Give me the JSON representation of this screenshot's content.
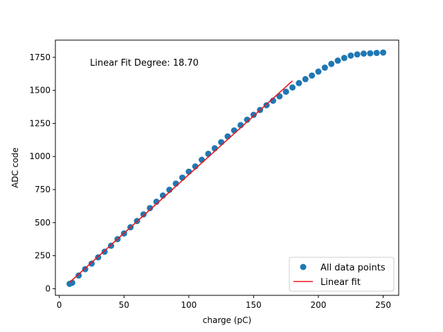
{
  "chart_data": {
    "type": "scatter",
    "title": "",
    "xlabel": "charge (pC)",
    "ylabel": "ADC code",
    "xlim": [
      -3,
      262
    ],
    "ylim": [
      -50,
      1880
    ],
    "xticks": [
      0,
      50,
      100,
      150,
      200,
      250
    ],
    "yticks": [
      0,
      250,
      500,
      750,
      1000,
      1250,
      1500,
      1750
    ],
    "grid": false,
    "legend_position": "lower-right",
    "annotation": "Linear Fit Degree: 18.70",
    "series": [
      {
        "name": "All data points",
        "kind": "scatter",
        "color": "#1f77b4",
        "x": [
          8,
          10,
          15,
          20,
          25,
          30,
          35,
          40,
          45,
          50,
          55,
          60,
          65,
          70,
          75,
          80,
          85,
          90,
          95,
          100,
          105,
          110,
          115,
          120,
          125,
          130,
          135,
          140,
          145,
          150,
          155,
          160,
          165,
          170,
          175,
          180,
          185,
          190,
          195,
          200,
          205,
          210,
          215,
          220,
          225,
          230,
          235,
          240,
          245,
          250
        ],
        "y": [
          37,
          45,
          100,
          148,
          190,
          237,
          280,
          325,
          375,
          418,
          465,
          512,
          562,
          610,
          658,
          705,
          748,
          795,
          840,
          885,
          925,
          975,
          1020,
          1062,
          1108,
          1152,
          1197,
          1237,
          1278,
          1315,
          1352,
          1388,
          1422,
          1455,
          1490,
          1522,
          1555,
          1585,
          1612,
          1642,
          1672,
          1700,
          1725,
          1745,
          1763,
          1772,
          1778,
          1780,
          1783,
          1786
        ]
      },
      {
        "name": "Linear fit",
        "kind": "line",
        "color": "#e8161b",
        "x": [
          8,
          180
        ],
        "y": [
          48,
          1572
        ]
      }
    ]
  }
}
